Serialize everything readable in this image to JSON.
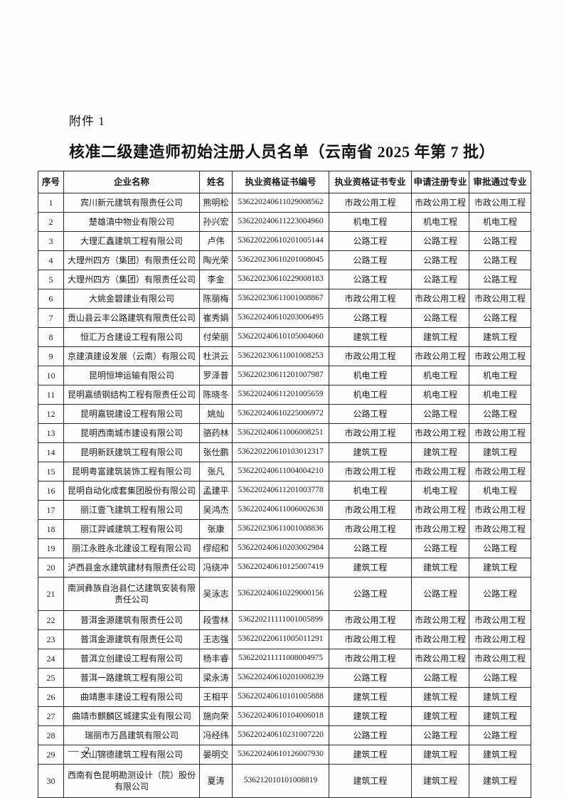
{
  "page": {
    "attachment_label": "附件 1",
    "title": "核准二级建造师初始注册人员名单（云南省 2025 年第 7 批）",
    "page_number": "— 2 —"
  },
  "table": {
    "columns": [
      "序号",
      "企业名称",
      "姓名",
      "执业资格证书编号",
      "执业资格证书专业",
      "申请注册专业",
      "审批通过专业"
    ],
    "rows": [
      {
        "no": "1",
        "company": "宾川新元建筑有限责任公司",
        "name": "熊明松",
        "cert_no": "536220240611029008562",
        "cert_major": "市政公用工程",
        "apply_major": "市政公用工程",
        "approved_major": "市政公用工程"
      },
      {
        "no": "2",
        "company": "楚雄滇中物业有限公司",
        "name": "孙兴宏",
        "cert_no": "536220240611223004960",
        "cert_major": "机电工程",
        "apply_major": "机电工程",
        "approved_major": "机电工程"
      },
      {
        "no": "3",
        "company": "大理汇鑫建筑工程有限公司",
        "name": "卢伟",
        "cert_no": "536220220610201005144",
        "cert_major": "公路工程",
        "apply_major": "公路工程",
        "approved_major": "公路工程"
      },
      {
        "no": "4",
        "company": "大理州四方（集团）有限责任公司",
        "name": "陶光荣",
        "cert_no": "536220230610201008045",
        "cert_major": "公路工程",
        "apply_major": "公路工程",
        "approved_major": "公路工程"
      },
      {
        "no": "5",
        "company": "大理州四方（集团）有限责任公司",
        "name": "李金",
        "cert_no": "536220230610229008183",
        "cert_major": "公路工程",
        "apply_major": "公路工程",
        "approved_major": "公路工程"
      },
      {
        "no": "6",
        "company": "大姚金碧建业有限公司",
        "name": "陈丽梅",
        "cert_no": "536220230611001008867",
        "cert_major": "市政公用工程",
        "apply_major": "市政公用工程",
        "approved_major": "市政公用工程"
      },
      {
        "no": "7",
        "company": "贡山县云丰公路建筑有限责任公司",
        "name": "崔秀娟",
        "cert_no": "536220240610203006495",
        "cert_major": "公路工程",
        "apply_major": "公路工程",
        "approved_major": "公路工程"
      },
      {
        "no": "8",
        "company": "恒汇万合建设工程有限公司",
        "name": "付荣丽",
        "cert_no": "536220240610105004060",
        "cert_major": "建筑工程",
        "apply_major": "建筑工程",
        "approved_major": "建筑工程"
      },
      {
        "no": "9",
        "company": "京建滇建设发展（云南）有限公司",
        "name": "杜洪云",
        "cert_no": "536220230611001008253",
        "cert_major": "市政公用工程",
        "apply_major": "市政公用工程",
        "approved_major": "市政公用工程"
      },
      {
        "no": "10",
        "company": "昆明恒坤运输有限公司",
        "name": "罗泽普",
        "cert_no": "536220230611201007987",
        "cert_major": "机电工程",
        "apply_major": "机电工程",
        "approved_major": "机电工程"
      },
      {
        "no": "11",
        "company": "昆明嘉绩钢结构工程有限责任公司",
        "name": "陈晓冬",
        "cert_no": "536220240611201005659",
        "cert_major": "机电工程",
        "apply_major": "机电工程",
        "approved_major": "机电工程"
      },
      {
        "no": "12",
        "company": "昆明嘉锐建设工程有限公司",
        "name": "姚灿",
        "cert_no": "536220240610225006972",
        "cert_major": "公路工程",
        "apply_major": "公路工程",
        "approved_major": "公路工程"
      },
      {
        "no": "13",
        "company": "昆明西南城市建设有限公司",
        "name": "骆药林",
        "cert_no": "536220240611006008251",
        "cert_major": "市政公用工程",
        "apply_major": "市政公用工程",
        "approved_major": "市政公用工程"
      },
      {
        "no": "14",
        "company": "昆明新跃建筑工程有限公司",
        "name": "张仕鹏",
        "cert_no": "536220220610103012317",
        "cert_major": "建筑工程",
        "apply_major": "建筑工程",
        "approved_major": "建筑工程"
      },
      {
        "no": "15",
        "company": "昆明粤富建筑装饰工程有限公司",
        "name": "张凡",
        "cert_no": "536220240611004004210",
        "cert_major": "市政公用工程",
        "apply_major": "市政公用工程",
        "approved_major": "市政公用工程"
      },
      {
        "no": "16",
        "company": "昆明自动化成套集团股份有限公司",
        "name": "孟建平",
        "cert_no": "536220240611201003778",
        "cert_major": "机电工程",
        "apply_major": "机电工程",
        "approved_major": "机电工程"
      },
      {
        "no": "17",
        "company": "丽江壹飞建筑工程有限公司",
        "name": "吴鸿杰",
        "cert_no": "536220240611006002638",
        "cert_major": "市政公用工程",
        "apply_major": "市政公用工程",
        "approved_major": "市政公用工程"
      },
      {
        "no": "18",
        "company": "丽江羿诚建筑工程有限公司",
        "name": "张康",
        "cert_no": "536220230611001008836",
        "cert_major": "市政公用工程",
        "apply_major": "市政公用工程",
        "approved_major": "市政公用工程"
      },
      {
        "no": "19",
        "company": "丽江永胜永北建设工程有限公司",
        "name": "缪绍和",
        "cert_no": "536220240610203002984",
        "cert_major": "公路工程",
        "apply_major": "公路工程",
        "approved_major": "公路工程"
      },
      {
        "no": "20",
        "company": "泸西县金水建筑建材有限责任公司",
        "name": "冯绕冲",
        "cert_no": "536220240610125007419",
        "cert_major": "建筑工程",
        "apply_major": "建筑工程",
        "approved_major": "建筑工程"
      },
      {
        "no": "21",
        "company": "南涧彝族自治县仁达建筑安装有限责任公司",
        "name": "吴泳志",
        "cert_no": "536220240610229000156",
        "cert_major": "公路工程",
        "apply_major": "公路工程",
        "approved_major": "公路工程"
      },
      {
        "no": "22",
        "company": "普洱金源建筑有限责任公司",
        "name": "段雪林",
        "cert_no": "536220211111001005899",
        "cert_major": "市政公用工程",
        "apply_major": "市政公用工程",
        "approved_major": "市政公用工程"
      },
      {
        "no": "23",
        "company": "普洱金源建筑有限责任公司",
        "name": "王志强",
        "cert_no": "536220220611005011291",
        "cert_major": "市政公用工程",
        "apply_major": "市政公用工程",
        "approved_major": "市政公用工程"
      },
      {
        "no": "24",
        "company": "普洱立创建设工程有限公司",
        "name": "杨丰睿",
        "cert_no": "536220211111008004975",
        "cert_major": "市政公用工程",
        "apply_major": "市政公用工程",
        "approved_major": "市政公用工程"
      },
      {
        "no": "25",
        "company": "普洱一路建筑工程有限公司",
        "name": "梁永涛",
        "cert_no": "536220240610201008239",
        "cert_major": "公路工程",
        "apply_major": "公路工程",
        "approved_major": "公路工程"
      },
      {
        "no": "26",
        "company": "曲靖惠丰建设工程有限公司",
        "name": "王相平",
        "cert_no": "536220240610101005888",
        "cert_major": "建筑工程",
        "apply_major": "建筑工程",
        "approved_major": "建筑工程"
      },
      {
        "no": "27",
        "company": "曲靖市麒麟区城建实业有限公司",
        "name": "施向荣",
        "cert_no": "536220240610104006018",
        "cert_major": "建筑工程",
        "apply_major": "建筑工程",
        "approved_major": "建筑工程"
      },
      {
        "no": "28",
        "company": "瑞丽市万昌建筑有限公司",
        "name": "冯经纬",
        "cert_no": "536220240610231007220",
        "cert_major": "公路工程",
        "apply_major": "公路工程",
        "approved_major": "公路工程"
      },
      {
        "no": "29",
        "company": "文山锦德建筑工程有限公司",
        "name": "晏明交",
        "cert_no": "536220240610126007930",
        "cert_major": "建筑工程",
        "apply_major": "建筑工程",
        "approved_major": "建筑工程"
      },
      {
        "no": "30",
        "company": "西南有色昆明勘测设计（院）股份有限公司",
        "name": "夏涛",
        "cert_no": "536212010101008819",
        "cert_major": "建筑工程",
        "apply_major": "建筑工程",
        "approved_major": "建筑工程"
      }
    ]
  }
}
